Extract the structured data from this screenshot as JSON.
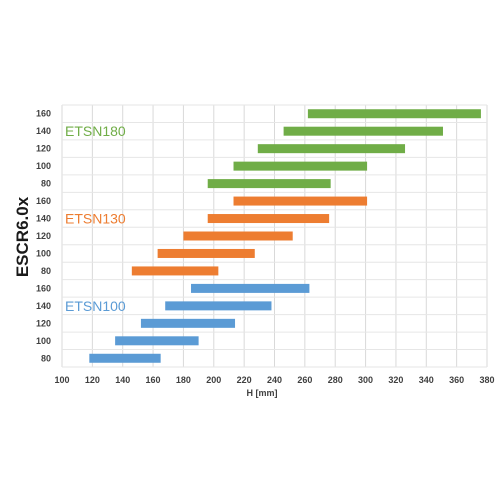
{
  "chart_data": {
    "type": "bar",
    "orientation": "horizontal-range",
    "ylabel": "ESCR6.0x",
    "xlabel": "H [mm]",
    "xlim": [
      100,
      380
    ],
    "xticks": [
      "100",
      "120",
      "140",
      "160",
      "180",
      "200",
      "220",
      "240",
      "260",
      "280",
      "300",
      "320",
      "340",
      "360",
      "380"
    ],
    "grid": true,
    "groups": [
      {
        "name": "ETSN100",
        "color": "#5b9bd5",
        "rows": [
          {
            "label": "80",
            "start": 118,
            "end": 165
          },
          {
            "label": "100",
            "start": 135,
            "end": 190
          },
          {
            "label": "120",
            "start": 152,
            "end": 214
          },
          {
            "label": "140",
            "start": 168,
            "end": 238
          },
          {
            "label": "160",
            "start": 185,
            "end": 263
          }
        ]
      },
      {
        "name": "ETSN130",
        "color": "#ed7d31",
        "rows": [
          {
            "label": "80",
            "start": 146,
            "end": 203
          },
          {
            "label": "100",
            "start": 163,
            "end": 227
          },
          {
            "label": "120",
            "start": 180,
            "end": 252
          },
          {
            "label": "140",
            "start": 196,
            "end": 276
          },
          {
            "label": "160",
            "start": 213,
            "end": 301
          }
        ]
      },
      {
        "name": "ETSN180",
        "color": "#70ad47",
        "rows": [
          {
            "label": "80",
            "start": 196,
            "end": 277
          },
          {
            "label": "100",
            "start": 213,
            "end": 301
          },
          {
            "label": "120",
            "start": 229,
            "end": 326
          },
          {
            "label": "140",
            "start": 246,
            "end": 351
          },
          {
            "label": "160",
            "start": 262,
            "end": 376
          }
        ]
      }
    ]
  }
}
